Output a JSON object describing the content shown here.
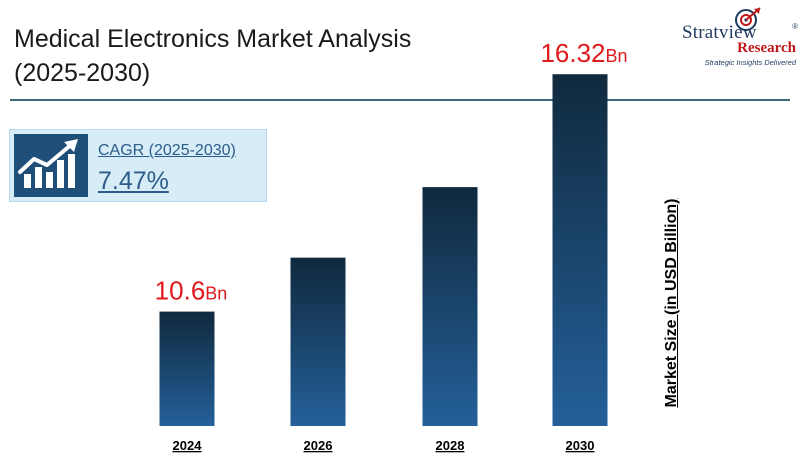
{
  "header": {
    "title_line1": "Medical Electronics Market Analysis",
    "title_line2": "(2025-2030)"
  },
  "logo": {
    "brand_part1": "Stratview",
    "brand_part2": "Research",
    "registered": "®",
    "tagline": "Strategic Insights Delivered"
  },
  "cagr": {
    "label": "CAGR (2025-2030)",
    "value": "7.47%",
    "icon": "growth-chart-icon"
  },
  "colors": {
    "bar_top": "#10293d",
    "bar_bottom": "#24609a",
    "value_label": "#e0191b",
    "rule": "#3e6b79",
    "accent": "#1f4e79"
  },
  "chart_data": {
    "type": "bar",
    "categories": [
      "2024",
      "2026",
      "2028",
      "2030"
    ],
    "values": [
      10.6,
      11.9,
      13.6,
      16.32
    ],
    "data_labels": [
      {
        "index": 0,
        "number": "10.6",
        "unit": "Bn"
      },
      {
        "index": 3,
        "number": "16.32",
        "unit": "Bn"
      }
    ],
    "title": "Medical Electronics Market Analysis (2025-2030)",
    "xlabel": "",
    "ylabel": "Market Size (in USD Billion)",
    "ylim": [
      0,
      17
    ],
    "grid": false,
    "legend": "none"
  }
}
